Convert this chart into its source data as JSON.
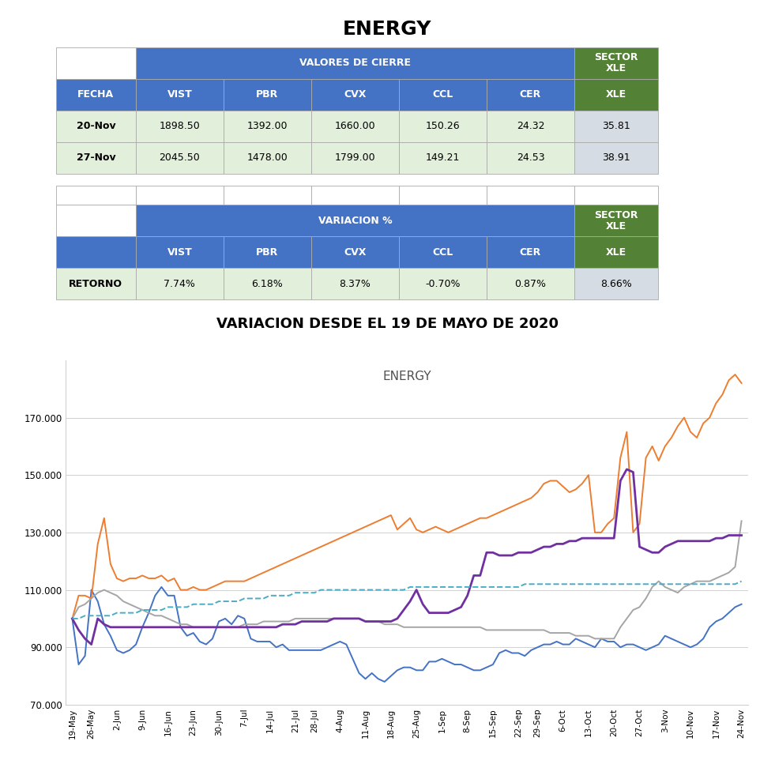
{
  "title": "ENERGY",
  "chart_title": "VARIACION DESDE EL 19 DE MAYO DE 2020",
  "chart_inner_title": "ENERGY",
  "color_blue": "#4472C4",
  "color_green": "#538135",
  "color_light_green_bg": "#E2EFDA",
  "color_light_gray_bg": "#D6DCE4",
  "color_white": "#FFFFFF",
  "xtick_labels": [
    "19-May",
    "26-May",
    "2-Jun",
    "9-Jun",
    "16-Jun",
    "23-Jun",
    "30-Jun",
    "7-Jul",
    "14-Jul",
    "21-Jul",
    "28-Jul",
    "4-Aug",
    "11-Aug",
    "18-Aug",
    "25-Aug",
    "1-Sep",
    "8-Sep",
    "15-Sep",
    "22-Sep",
    "29-Sep",
    "6-Oct",
    "13-Oct",
    "20-Oct",
    "27-Oct",
    "3-Nov",
    "10-Nov",
    "17-Nov",
    "24-Nov"
  ],
  "VIST": [
    100,
    84,
    87,
    110,
    106,
    98,
    94,
    89,
    88,
    89,
    91,
    97,
    102,
    108,
    111,
    108,
    108,
    97,
    94,
    95,
    92,
    91,
    93,
    99,
    100,
    98,
    101,
    100,
    93,
    92,
    92,
    92,
    90,
    91,
    89,
    89,
    89,
    89,
    89,
    89,
    90,
    91,
    92,
    91,
    86,
    81,
    79,
    81,
    79,
    78,
    80,
    82,
    83,
    83,
    82,
    82,
    85,
    85,
    86,
    85,
    84,
    84,
    83,
    82,
    82,
    83,
    84,
    88,
    89,
    88,
    88,
    87,
    89,
    90,
    91,
    91,
    92,
    91,
    91,
    93,
    92,
    91,
    90,
    93,
    92,
    92,
    90,
    91,
    91,
    90,
    89,
    90,
    91,
    94,
    93,
    92,
    91,
    90,
    91,
    93,
    97,
    99,
    100,
    102,
    104,
    105
  ],
  "PBR": [
    100,
    108,
    108,
    107,
    126,
    135,
    119,
    114,
    113,
    114,
    114,
    115,
    114,
    114,
    115,
    113,
    114,
    110,
    110,
    111,
    110,
    110,
    111,
    112,
    113,
    113,
    113,
    113,
    114,
    115,
    116,
    117,
    118,
    119,
    120,
    121,
    122,
    123,
    124,
    125,
    126,
    127,
    128,
    129,
    130,
    131,
    132,
    133,
    134,
    135,
    136,
    131,
    133,
    135,
    131,
    130,
    131,
    132,
    131,
    130,
    131,
    132,
    133,
    134,
    135,
    135,
    136,
    137,
    138,
    139,
    140,
    141,
    142,
    144,
    147,
    148,
    148,
    146,
    144,
    145,
    147,
    150,
    130,
    130,
    133,
    135,
    156,
    165,
    130,
    133,
    156,
    160,
    155,
    160,
    163,
    167,
    170,
    165,
    163,
    168,
    170,
    175,
    178,
    183,
    185,
    182
  ],
  "CVX": [
    100,
    104,
    105,
    107,
    109,
    110,
    109,
    108,
    106,
    105,
    104,
    103,
    102,
    101,
    101,
    100,
    99,
    98,
    98,
    97,
    97,
    97,
    97,
    97,
    97,
    97,
    97,
    98,
    98,
    98,
    99,
    99,
    99,
    99,
    99,
    100,
    100,
    100,
    100,
    100,
    100,
    100,
    100,
    100,
    100,
    100,
    99,
    99,
    99,
    98,
    98,
    98,
    97,
    97,
    97,
    97,
    97,
    97,
    97,
    97,
    97,
    97,
    97,
    97,
    97,
    96,
    96,
    96,
    96,
    96,
    96,
    96,
    96,
    96,
    96,
    95,
    95,
    95,
    95,
    94,
    94,
    94,
    93,
    93,
    93,
    93,
    97,
    100,
    103,
    104,
    107,
    111,
    113,
    111,
    110,
    109,
    111,
    112,
    113,
    113,
    113,
    114,
    115,
    116,
    118,
    134
  ],
  "CCL": [
    100,
    96,
    93,
    91,
    100,
    98,
    97,
    97,
    97,
    97,
    97,
    97,
    97,
    97,
    97,
    97,
    97,
    97,
    97,
    97,
    97,
    97,
    97,
    97,
    97,
    97,
    97,
    97,
    97,
    97,
    97,
    97,
    97,
    98,
    98,
    98,
    99,
    99,
    99,
    99,
    99,
    100,
    100,
    100,
    100,
    100,
    99,
    99,
    99,
    99,
    99,
    100,
    103,
    106,
    110,
    105,
    102,
    102,
    102,
    102,
    103,
    104,
    108,
    115,
    115,
    123,
    123,
    122,
    122,
    122,
    123,
    123,
    123,
    124,
    125,
    125,
    126,
    126,
    127,
    127,
    128,
    128,
    128,
    128,
    128,
    128,
    148,
    152,
    151,
    125,
    124,
    123,
    123,
    125,
    126,
    127,
    127,
    127,
    127,
    127,
    127,
    128,
    128,
    129,
    129,
    129
  ],
  "CER": [
    100,
    100,
    101,
    101,
    101,
    101,
    101,
    102,
    102,
    102,
    102,
    103,
    103,
    103,
    103,
    104,
    104,
    104,
    104,
    105,
    105,
    105,
    105,
    106,
    106,
    106,
    106,
    107,
    107,
    107,
    107,
    108,
    108,
    108,
    108,
    109,
    109,
    109,
    109,
    110,
    110,
    110,
    110,
    110,
    110,
    110,
    110,
    110,
    110,
    110,
    110,
    110,
    110,
    111,
    111,
    111,
    111,
    111,
    111,
    111,
    111,
    111,
    111,
    111,
    111,
    111,
    111,
    111,
    111,
    111,
    111,
    112,
    112,
    112,
    112,
    112,
    112,
    112,
    112,
    112,
    112,
    112,
    112,
    112,
    112,
    112,
    112,
    112,
    112,
    112,
    112,
    112,
    112,
    112,
    112,
    112,
    112,
    112,
    112,
    112,
    112,
    112,
    112,
    112,
    112,
    113
  ],
  "line_colors": {
    "VIST": "#4472C4",
    "PBR": "#ED7D31",
    "CVX": "#A5A5A5",
    "CCL": "#7030A0",
    "CER": "#4BACC6"
  },
  "line_styles": {
    "VIST": "-",
    "PBR": "-",
    "CVX": "-",
    "CCL": "-",
    "CER": "--"
  },
  "ylim": [
    70,
    190
  ],
  "yticks": [
    70,
    90,
    110,
    130,
    150,
    170
  ],
  "table1_rows": [
    [
      "20-Nov",
      "1898.50",
      "1392.00",
      "1660.00",
      "150.26",
      "24.32",
      "35.81"
    ],
    [
      "27-Nov",
      "2045.50",
      "1478.00",
      "1799.00",
      "149.21",
      "24.53",
      "38.91"
    ]
  ],
  "table2_rows": [
    [
      "RETORNO",
      "7.74%",
      "6.18%",
      "8.37%",
      "-0.70%",
      "0.87%",
      "8.66%"
    ]
  ]
}
